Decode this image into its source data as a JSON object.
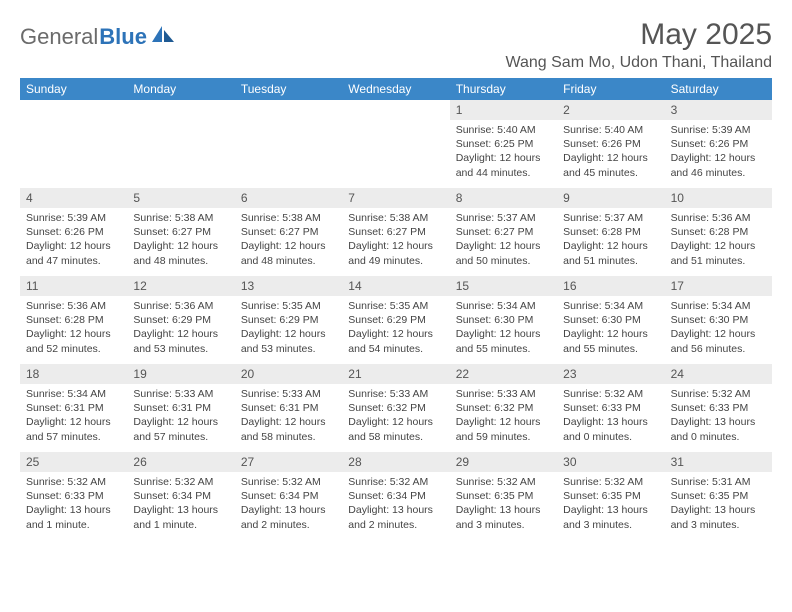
{
  "brand": {
    "part1": "General",
    "part2": "Blue"
  },
  "title": "May 2025",
  "location": "Wang Sam Mo, Udon Thani, Thailand",
  "colors": {
    "header_bg": "#3b87c8",
    "header_text": "#ffffff",
    "daynum_bg": "#ececec",
    "text": "#444444",
    "title_text": "#555555",
    "brand_gray": "#6b6b6b",
    "brand_blue": "#2d73b8",
    "page_bg": "#ffffff"
  },
  "dow": [
    "Sunday",
    "Monday",
    "Tuesday",
    "Wednesday",
    "Thursday",
    "Friday",
    "Saturday"
  ],
  "weeks": [
    [
      {
        "n": "",
        "sr": "",
        "ss": "",
        "dl": ""
      },
      {
        "n": "",
        "sr": "",
        "ss": "",
        "dl": ""
      },
      {
        "n": "",
        "sr": "",
        "ss": "",
        "dl": ""
      },
      {
        "n": "",
        "sr": "",
        "ss": "",
        "dl": ""
      },
      {
        "n": "1",
        "sr": "Sunrise: 5:40 AM",
        "ss": "Sunset: 6:25 PM",
        "dl": "Daylight: 12 hours and 44 minutes."
      },
      {
        "n": "2",
        "sr": "Sunrise: 5:40 AM",
        "ss": "Sunset: 6:26 PM",
        "dl": "Daylight: 12 hours and 45 minutes."
      },
      {
        "n": "3",
        "sr": "Sunrise: 5:39 AM",
        "ss": "Sunset: 6:26 PM",
        "dl": "Daylight: 12 hours and 46 minutes."
      }
    ],
    [
      {
        "n": "4",
        "sr": "Sunrise: 5:39 AM",
        "ss": "Sunset: 6:26 PM",
        "dl": "Daylight: 12 hours and 47 minutes."
      },
      {
        "n": "5",
        "sr": "Sunrise: 5:38 AM",
        "ss": "Sunset: 6:27 PM",
        "dl": "Daylight: 12 hours and 48 minutes."
      },
      {
        "n": "6",
        "sr": "Sunrise: 5:38 AM",
        "ss": "Sunset: 6:27 PM",
        "dl": "Daylight: 12 hours and 48 minutes."
      },
      {
        "n": "7",
        "sr": "Sunrise: 5:38 AM",
        "ss": "Sunset: 6:27 PM",
        "dl": "Daylight: 12 hours and 49 minutes."
      },
      {
        "n": "8",
        "sr": "Sunrise: 5:37 AM",
        "ss": "Sunset: 6:27 PM",
        "dl": "Daylight: 12 hours and 50 minutes."
      },
      {
        "n": "9",
        "sr": "Sunrise: 5:37 AM",
        "ss": "Sunset: 6:28 PM",
        "dl": "Daylight: 12 hours and 51 minutes."
      },
      {
        "n": "10",
        "sr": "Sunrise: 5:36 AM",
        "ss": "Sunset: 6:28 PM",
        "dl": "Daylight: 12 hours and 51 minutes."
      }
    ],
    [
      {
        "n": "11",
        "sr": "Sunrise: 5:36 AM",
        "ss": "Sunset: 6:28 PM",
        "dl": "Daylight: 12 hours and 52 minutes."
      },
      {
        "n": "12",
        "sr": "Sunrise: 5:36 AM",
        "ss": "Sunset: 6:29 PM",
        "dl": "Daylight: 12 hours and 53 minutes."
      },
      {
        "n": "13",
        "sr": "Sunrise: 5:35 AM",
        "ss": "Sunset: 6:29 PM",
        "dl": "Daylight: 12 hours and 53 minutes."
      },
      {
        "n": "14",
        "sr": "Sunrise: 5:35 AM",
        "ss": "Sunset: 6:29 PM",
        "dl": "Daylight: 12 hours and 54 minutes."
      },
      {
        "n": "15",
        "sr": "Sunrise: 5:34 AM",
        "ss": "Sunset: 6:30 PM",
        "dl": "Daylight: 12 hours and 55 minutes."
      },
      {
        "n": "16",
        "sr": "Sunrise: 5:34 AM",
        "ss": "Sunset: 6:30 PM",
        "dl": "Daylight: 12 hours and 55 minutes."
      },
      {
        "n": "17",
        "sr": "Sunrise: 5:34 AM",
        "ss": "Sunset: 6:30 PM",
        "dl": "Daylight: 12 hours and 56 minutes."
      }
    ],
    [
      {
        "n": "18",
        "sr": "Sunrise: 5:34 AM",
        "ss": "Sunset: 6:31 PM",
        "dl": "Daylight: 12 hours and 57 minutes."
      },
      {
        "n": "19",
        "sr": "Sunrise: 5:33 AM",
        "ss": "Sunset: 6:31 PM",
        "dl": "Daylight: 12 hours and 57 minutes."
      },
      {
        "n": "20",
        "sr": "Sunrise: 5:33 AM",
        "ss": "Sunset: 6:31 PM",
        "dl": "Daylight: 12 hours and 58 minutes."
      },
      {
        "n": "21",
        "sr": "Sunrise: 5:33 AM",
        "ss": "Sunset: 6:32 PM",
        "dl": "Daylight: 12 hours and 58 minutes."
      },
      {
        "n": "22",
        "sr": "Sunrise: 5:33 AM",
        "ss": "Sunset: 6:32 PM",
        "dl": "Daylight: 12 hours and 59 minutes."
      },
      {
        "n": "23",
        "sr": "Sunrise: 5:32 AM",
        "ss": "Sunset: 6:33 PM",
        "dl": "Daylight: 13 hours and 0 minutes."
      },
      {
        "n": "24",
        "sr": "Sunrise: 5:32 AM",
        "ss": "Sunset: 6:33 PM",
        "dl": "Daylight: 13 hours and 0 minutes."
      }
    ],
    [
      {
        "n": "25",
        "sr": "Sunrise: 5:32 AM",
        "ss": "Sunset: 6:33 PM",
        "dl": "Daylight: 13 hours and 1 minute."
      },
      {
        "n": "26",
        "sr": "Sunrise: 5:32 AM",
        "ss": "Sunset: 6:34 PM",
        "dl": "Daylight: 13 hours and 1 minute."
      },
      {
        "n": "27",
        "sr": "Sunrise: 5:32 AM",
        "ss": "Sunset: 6:34 PM",
        "dl": "Daylight: 13 hours and 2 minutes."
      },
      {
        "n": "28",
        "sr": "Sunrise: 5:32 AM",
        "ss": "Sunset: 6:34 PM",
        "dl": "Daylight: 13 hours and 2 minutes."
      },
      {
        "n": "29",
        "sr": "Sunrise: 5:32 AM",
        "ss": "Sunset: 6:35 PM",
        "dl": "Daylight: 13 hours and 3 minutes."
      },
      {
        "n": "30",
        "sr": "Sunrise: 5:32 AM",
        "ss": "Sunset: 6:35 PM",
        "dl": "Daylight: 13 hours and 3 minutes."
      },
      {
        "n": "31",
        "sr": "Sunrise: 5:31 AM",
        "ss": "Sunset: 6:35 PM",
        "dl": "Daylight: 13 hours and 3 minutes."
      }
    ]
  ]
}
